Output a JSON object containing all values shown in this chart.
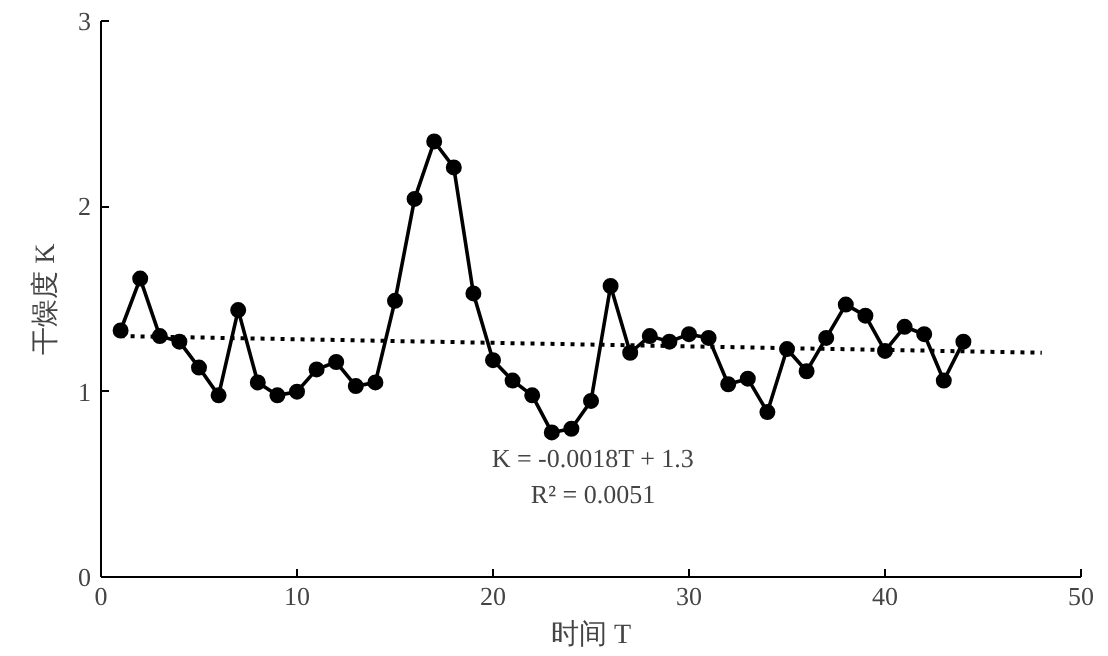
{
  "chart_data": {
    "type": "line",
    "xlabel": "时间 T",
    "ylabel": "干燥度 K",
    "xlim": [
      0,
      50
    ],
    "xticks": [
      0,
      10,
      20,
      30,
      40,
      50
    ],
    "ylim": [
      0,
      3
    ],
    "yticks": [
      0,
      1,
      2,
      3
    ],
    "grid": false,
    "annotations": [
      "K = -0.0018T + 1.3",
      "R² = 0.0051"
    ],
    "series": [
      {
        "color": "#000000",
        "marker": "circle",
        "line_style": "solid",
        "x": [
          1,
          2,
          3,
          4,
          5,
          6,
          7,
          8,
          9,
          10,
          11,
          12,
          13,
          14,
          15,
          16,
          17,
          18,
          19,
          20,
          21,
          22,
          23,
          24,
          25,
          26,
          27,
          28,
          29,
          30,
          31,
          32,
          33,
          34,
          35,
          36,
          37,
          38,
          39,
          40,
          41,
          42,
          43,
          44
        ],
        "values": [
          1.33,
          1.61,
          1.3,
          1.27,
          1.13,
          0.98,
          1.44,
          1.05,
          0.98,
          1.0,
          1.12,
          1.16,
          1.03,
          1.05,
          1.49,
          2.04,
          2.35,
          2.21,
          1.53,
          1.17,
          1.06,
          0.98,
          0.78,
          0.8,
          0.95,
          1.57,
          1.21,
          1.3,
          1.27,
          1.31,
          1.29,
          1.04,
          1.07,
          0.89,
          1.23,
          1.11,
          1.29,
          1.47,
          1.41,
          1.22,
          1.35,
          1.31,
          1.06,
          1.27
        ]
      },
      {
        "color": "#000000",
        "marker": "none",
        "line_style": "dotted",
        "x": [
          1,
          48
        ],
        "values": [
          1.3,
          1.21
        ]
      }
    ]
  }
}
